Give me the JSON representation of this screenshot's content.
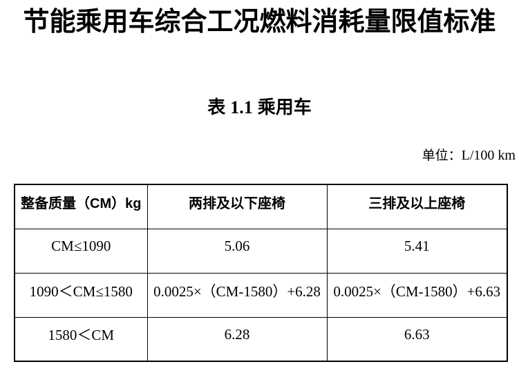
{
  "page": {
    "title": "节能乘用车综合工况燃料消耗量限值标准",
    "caption_prefix": "表",
    "caption_number": "1.1",
    "caption_suffix": "乘用车",
    "unit_label": "单位：",
    "unit_value": "L/100 km"
  },
  "table": {
    "headers": [
      "整备质量（CM）kg",
      "两排及以下座椅",
      "三排及以上座椅"
    ],
    "rows": [
      [
        "CM≤1090",
        "5.06",
        "5.41"
      ],
      [
        "1090＜CM≤1580",
        "0.0025×（CM-1580）+6.28",
        "0.0025×（CM-1580）+6.63"
      ],
      [
        "1580＜CM",
        "6.28",
        "6.63"
      ]
    ]
  },
  "colors": {
    "text": "#000000",
    "background": "#ffffff",
    "border": "#000000"
  }
}
